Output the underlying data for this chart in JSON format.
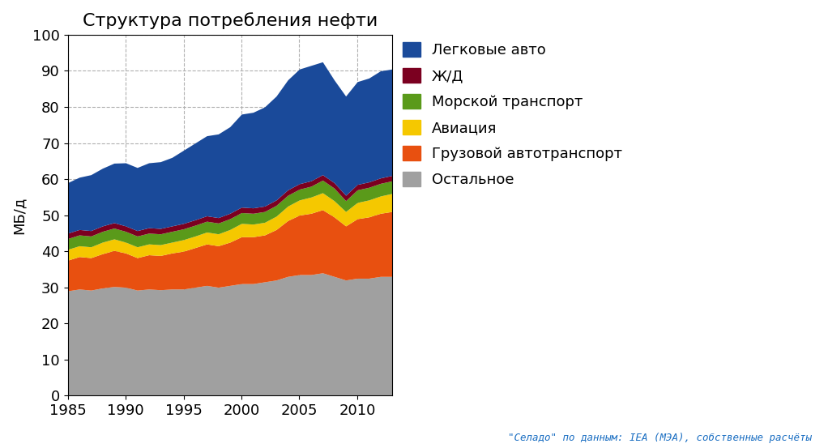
{
  "title": "Структура потребления нефти",
  "ylabel": "МБ/д",
  "source_text": "\"Ceлaдo\" по данным: IEA (МЭА), собственные расчёты",
  "years": [
    1985,
    1986,
    1987,
    1988,
    1989,
    1990,
    1991,
    1992,
    1993,
    1994,
    1995,
    1996,
    1997,
    1998,
    1999,
    2000,
    2001,
    2002,
    2003,
    2004,
    2005,
    2006,
    2007,
    2008,
    2009,
    2010,
    2011,
    2012,
    2013
  ],
  "series": {
    "Остальное": [
      29.0,
      29.5,
      29.2,
      29.8,
      30.2,
      30.0,
      29.2,
      29.5,
      29.3,
      29.5,
      29.5,
      30.0,
      30.5,
      30.0,
      30.5,
      31.0,
      31.0,
      31.5,
      32.0,
      33.0,
      33.5,
      33.5,
      34.0,
      33.0,
      32.0,
      32.5,
      32.5,
      33.0,
      33.0
    ],
    "Грузовой автотранспорт": [
      8.5,
      9.0,
      9.0,
      9.5,
      10.0,
      9.5,
      9.0,
      9.5,
      9.5,
      10.0,
      10.5,
      11.0,
      11.5,
      11.5,
      12.0,
      13.0,
      13.0,
      13.0,
      14.0,
      15.5,
      16.5,
      17.0,
      17.5,
      16.5,
      15.0,
      16.5,
      17.0,
      17.5,
      18.0
    ],
    "Авиация": [
      3.0,
      3.0,
      3.0,
      3.2,
      3.2,
      3.0,
      3.0,
      3.0,
      3.0,
      3.0,
      3.2,
      3.2,
      3.3,
      3.3,
      3.5,
      3.7,
      3.5,
      3.5,
      3.7,
      4.0,
      4.2,
      4.5,
      4.7,
      4.5,
      4.0,
      4.5,
      4.7,
      4.8,
      5.0
    ],
    "Морской транспорт": [
      3.0,
      3.0,
      3.0,
      3.0,
      3.0,
      3.0,
      3.0,
      3.0,
      3.0,
      3.0,
      3.0,
      3.0,
      3.0,
      3.0,
      3.0,
      3.0,
      3.0,
      3.0,
      3.0,
      3.0,
      3.0,
      3.0,
      3.5,
      3.5,
      3.0,
      3.5,
      3.5,
      3.5,
      3.5
    ],
    "Ж/Д": [
      1.5,
      1.5,
      1.5,
      1.5,
      1.5,
      1.5,
      1.5,
      1.5,
      1.5,
      1.5,
      1.5,
      1.5,
      1.5,
      1.5,
      1.5,
      1.5,
      1.5,
      1.5,
      1.5,
      1.5,
      1.5,
      1.5,
      1.5,
      1.5,
      1.5,
      1.5,
      1.5,
      1.5,
      1.5
    ],
    "Легковые авто": [
      14.0,
      14.5,
      15.5,
      16.0,
      16.5,
      17.5,
      17.5,
      18.0,
      18.5,
      19.0,
      20.3,
      21.3,
      22.2,
      23.2,
      24.0,
      25.8,
      26.5,
      27.5,
      28.8,
      30.5,
      31.8,
      32.0,
      31.3,
      28.5,
      27.5,
      28.5,
      28.8,
      29.7,
      29.5
    ]
  },
  "colors": {
    "Остальное": "#a0a0a0",
    "Грузовой автотранспорт": "#e85010",
    "Авиация": "#f5c800",
    "Морской транспорт": "#5a9a1a",
    "Ж/Д": "#7b0020",
    "Легковые авто": "#1a4a9a"
  },
  "series_order": [
    "Остальное",
    "Грузовой автотранспорт",
    "Авиация",
    "Морской транспорт",
    "Ж/Д",
    "Легковые авто"
  ],
  "legend_order": [
    "Легковые авто",
    "Ж/Д",
    "Морской транспорт",
    "Авиация",
    "Грузовой автотранспорт",
    "Остальное"
  ],
  "ylim": [
    0,
    100
  ],
  "yticks": [
    0,
    10,
    20,
    30,
    40,
    50,
    60,
    70,
    80,
    90,
    100
  ],
  "xticks": [
    1985,
    1990,
    1995,
    2000,
    2005,
    2010
  ],
  "xlim": [
    1985,
    2013
  ],
  "background_color": "#ffffff",
  "plot_bg_color": "#ffffff",
  "grid_color": "#b0b0b0",
  "title_fontsize": 16,
  "axis_fontsize": 13,
  "legend_fontsize": 13,
  "source_fontsize": 9
}
